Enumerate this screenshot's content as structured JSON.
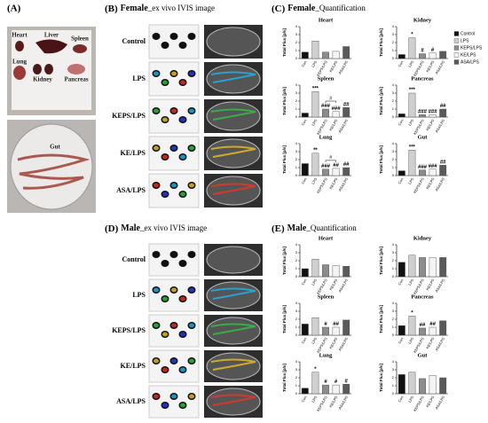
{
  "panels": {
    "a": {
      "label": "(A)",
      "organs": [
        "Heart",
        "Liver",
        "Spleen",
        "Lung",
        "Kidney",
        "Pancreas"
      ],
      "gut": "Gut"
    },
    "b": {
      "label": "(B)",
      "title": "Female",
      "subtitle": "_ex vivo IVIS image",
      "rows": [
        "Control",
        "LPS",
        "KEPS/LPS",
        "KE/LPS",
        "ASA/LPS"
      ]
    },
    "c": {
      "label": "(C)",
      "title": "Female",
      "subtitle": "_Quantification"
    },
    "d": {
      "label": "(D)",
      "title": "Male",
      "subtitle": "_ex vivo IVIS image",
      "rows": [
        "Control",
        "LPS",
        "KEPS/LPS",
        "KE/LPS",
        "ASA/LPS"
      ]
    },
    "e": {
      "label": "(E)",
      "title": "Male",
      "subtitle": "_Quantification"
    }
  },
  "legend": {
    "names": [
      "Control",
      "LPS",
      "KEPS/LPS",
      "KE/LPS",
      "ASA/LPS"
    ],
    "colors": [
      "#111111",
      "#cfcfcf",
      "#8c8c8c",
      "#f4f4f4",
      "#5a5a5a"
    ]
  },
  "chart_data": [
    {
      "type": "bar",
      "title": "Heart",
      "ylabel": "Total Flux [p/s]",
      "categories": [
        "Con",
        "LPS",
        "KEPS/LPS",
        "KE/LPS",
        "ASA/LPS"
      ],
      "values": [
        0.8,
        2.2,
        0.8,
        0.9,
        1.5
      ],
      "annotations": [
        null,
        null,
        null,
        null,
        null
      ],
      "ylim": [
        0,
        4
      ],
      "yticks": [
        0,
        1,
        2,
        3,
        4
      ]
    },
    {
      "type": "bar",
      "title": "Kidney",
      "ylabel": "Total Flux [p/s]",
      "categories": [
        "Con",
        "LPS",
        "KEPS/LPS",
        "KE/LPS",
        "ASA/LPS"
      ],
      "values": [
        0.5,
        2.6,
        0.6,
        0.7,
        0.9
      ],
      "annotations": [
        null,
        "*",
        "#",
        "#",
        null
      ],
      "ylim": [
        0,
        4
      ],
      "yticks": [
        0,
        1,
        2,
        3,
        4
      ]
    },
    {
      "type": "bar",
      "title": "Spleen",
      "ylabel": "Total Flux [p/s]",
      "categories": [
        "Con",
        "LPS",
        "KEPS/LPS",
        "KE/LPS",
        "ASA/LPS"
      ],
      "values": [
        0.5,
        3.2,
        1.0,
        0.7,
        1.2
      ],
      "annotations": [
        null,
        "***",
        "###",
        "###",
        "##"
      ],
      "bracket_label": "#",
      "ylim": [
        0,
        4
      ],
      "yticks": [
        0,
        1,
        2,
        3,
        4
      ]
    },
    {
      "type": "bar",
      "title": "Pancreas",
      "ylabel": "Total Flux [p/s]",
      "categories": [
        "Con",
        "LPS",
        "KEPS/LPS",
        "KE/LPS",
        "ASA/LPS"
      ],
      "values": [
        0.4,
        3.0,
        0.3,
        0.3,
        1.0
      ],
      "annotations": [
        null,
        "***",
        "###",
        "###",
        "##"
      ],
      "ylim": [
        0,
        4
      ],
      "yticks": [
        0,
        1,
        2,
        3,
        4
      ]
    },
    {
      "type": "bar",
      "title": "Lung",
      "ylabel": "Total Flux [p/s]",
      "categories": [
        "Con",
        "LPS",
        "KEPS/LPS",
        "KE/LPS",
        "ASA/LPS"
      ],
      "values": [
        1.5,
        2.8,
        0.8,
        0.9,
        1.0
      ],
      "annotations": [
        null,
        "**",
        "###",
        "##",
        "##"
      ],
      "bracket_label": "#",
      "ylim": [
        0,
        4
      ],
      "yticks": [
        0,
        1,
        2,
        3,
        4
      ]
    },
    {
      "type": "bar",
      "title": "Gut",
      "ylabel": "Total Flux [p/s]",
      "categories": [
        "Con",
        "LPS",
        "KEPS/LPS",
        "KE/LPS",
        "ASA/LPS"
      ],
      "values": [
        0.6,
        3.2,
        0.7,
        0.8,
        1.3
      ],
      "annotations": [
        null,
        "***",
        "###",
        "###",
        "##"
      ],
      "ylim": [
        0,
        4
      ],
      "yticks": [
        0,
        1,
        2,
        3,
        4
      ]
    },
    {
      "type": "bar",
      "title": "Heart",
      "ylabel": "Total Flux [p/s]",
      "categories": [
        "Con",
        "LPS",
        "KEPS/LPS",
        "KE/LPS",
        "ASA/LPS"
      ],
      "values": [
        1.0,
        2.2,
        1.5,
        1.4,
        1.3
      ],
      "annotations": [
        null,
        null,
        null,
        null,
        null
      ],
      "ylim": [
        0,
        4
      ],
      "yticks": [
        0,
        1,
        2,
        3,
        4
      ]
    },
    {
      "type": "bar",
      "title": "Kidney",
      "ylabel": "Total Flux [p/s]",
      "categories": [
        "Con",
        "LPS",
        "KEPS/LPS",
        "KE/LPS",
        "ASA/LPS"
      ],
      "values": [
        1.8,
        2.7,
        2.4,
        2.4,
        2.4
      ],
      "annotations": [
        null,
        null,
        null,
        null,
        null
      ],
      "ylim": [
        0,
        4
      ],
      "yticks": [
        0,
        1,
        2,
        3,
        4
      ]
    },
    {
      "type": "bar",
      "title": "Spleen",
      "ylabel": "Total Flux [p/s]",
      "categories": [
        "Con",
        "LPS",
        "KEPS/LPS",
        "KE/LPS",
        "ASA/LPS"
      ],
      "values": [
        1.4,
        2.2,
        1.0,
        1.0,
        1.9
      ],
      "annotations": [
        null,
        null,
        "#",
        "##",
        null
      ],
      "ylim": [
        0,
        4
      ],
      "yticks": [
        0,
        1,
        2,
        3,
        4
      ]
    },
    {
      "type": "bar",
      "title": "Pancreas",
      "ylabel": "Total Flux [p/s]",
      "categories": [
        "Con",
        "LPS",
        "KEPS/LPS",
        "KE/LPS",
        "ASA/LPS"
      ],
      "values": [
        1.2,
        2.4,
        0.9,
        1.0,
        1.8
      ],
      "annotations": [
        null,
        "*",
        "##",
        "##",
        null
      ],
      "ylim": [
        0,
        4
      ],
      "yticks": [
        0,
        1,
        2,
        3,
        4
      ]
    },
    {
      "type": "bar",
      "title": "Lung",
      "ylabel": "Total Flux [p/s]",
      "categories": [
        "Con",
        "LPS",
        "KEPS/LPS",
        "KE/LPS",
        "ASA/LPS"
      ],
      "values": [
        0.7,
        2.7,
        1.1,
        1.1,
        1.2
      ],
      "annotations": [
        null,
        "*",
        "#",
        "#",
        "#"
      ],
      "ylim": [
        0,
        4
      ],
      "yticks": [
        0,
        1,
        2,
        3,
        4
      ]
    },
    {
      "type": "bar",
      "title": "Gut",
      "ylabel": "Total Flux [p/s]",
      "categories": [
        "Con",
        "LPS",
        "KEPS/LPS",
        "KE/LPS",
        "ASA/LPS"
      ],
      "values": [
        2.4,
        2.7,
        1.9,
        2.3,
        2.0
      ],
      "annotations": [
        null,
        null,
        null,
        null,
        null
      ],
      "ylim": [
        0,
        4
      ],
      "yticks": [
        0,
        1,
        2,
        3,
        4
      ]
    }
  ]
}
